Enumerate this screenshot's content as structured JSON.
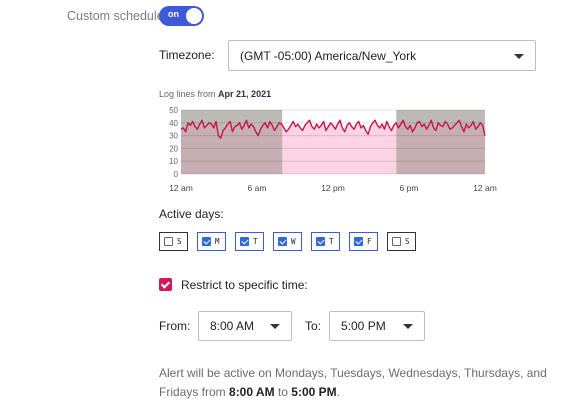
{
  "custom_schedule": {
    "label": "Custom schedule",
    "toggle_label": "on"
  },
  "timezone": {
    "label": "Timezone:",
    "value": "(GMT -05:00) America/New_York"
  },
  "chart_title": {
    "prefix": "Log lines from",
    "date": "Apr 21, 2021"
  },
  "chart_data": {
    "type": "line",
    "title": "Log lines from Apr 21, 2021",
    "xlabel": "",
    "ylabel": "",
    "x_ticks": [
      "12 am",
      "6 am",
      "12 pm",
      "6 pm",
      "12 am"
    ],
    "y_ticks": [
      0,
      10,
      20,
      30,
      40,
      50
    ],
    "ylim": [
      0,
      50
    ],
    "x_range_hours": [
      0,
      24
    ],
    "grid": true,
    "active_window_hours": [
      8,
      17
    ],
    "series": [
      {
        "values": [
          35,
          36,
          33,
          40,
          38,
          41,
          37,
          35,
          39,
          42,
          36,
          38,
          40,
          39,
          36,
          41,
          30,
          28,
          34,
          36,
          39,
          41,
          33,
          37,
          38,
          40,
          35,
          38,
          42,
          36,
          39,
          37,
          33,
          30,
          35,
          38,
          40,
          36,
          41,
          38,
          34,
          37,
          40,
          39,
          36,
          33,
          35,
          38,
          41,
          37,
          39,
          36,
          34,
          38,
          40,
          42,
          37,
          35,
          39,
          36,
          38,
          41,
          34,
          37,
          40,
          38,
          35,
          39,
          42,
          36,
          33,
          38,
          40,
          37,
          35,
          39,
          41,
          36,
          38,
          34,
          31,
          37,
          40,
          42,
          38,
          36,
          39,
          35,
          41,
          37,
          34,
          38,
          40,
          36,
          39,
          42,
          37,
          35,
          38,
          33,
          36,
          40,
          41,
          37,
          39,
          35,
          38,
          42,
          36,
          34,
          40,
          38,
          37,
          41,
          39,
          35,
          36,
          38,
          40,
          42,
          37,
          33,
          39,
          36,
          38,
          41,
          35,
          37,
          40,
          38,
          30
        ]
      }
    ],
    "colors": {
      "line": "#c8124f",
      "active_fill": "#fbd3e2",
      "inactive_fill": "#c6aeb3",
      "inactive_top": "#bdb9b5"
    }
  },
  "active_days": {
    "label": "Active days:",
    "days": [
      {
        "letter": "S",
        "checked": false
      },
      {
        "letter": "M",
        "checked": true
      },
      {
        "letter": "T",
        "checked": true
      },
      {
        "letter": "W",
        "checked": true
      },
      {
        "letter": "T",
        "checked": true
      },
      {
        "letter": "F",
        "checked": true
      },
      {
        "letter": "S",
        "checked": false
      }
    ]
  },
  "restrict": {
    "label": "Restrict to specific time:",
    "checked": true
  },
  "time_range": {
    "from_label": "From:",
    "from_value": "8:00 AM",
    "to_label": "To:",
    "to_value": "5:00 PM"
  },
  "description": {
    "part1": "Alert will be active on Mondays, Tuesdays, Wednesdays, Thursdays, and Fridays from ",
    "from": "8:00 AM",
    "part2": " to ",
    "to": "5:00 PM",
    "part3": "."
  }
}
